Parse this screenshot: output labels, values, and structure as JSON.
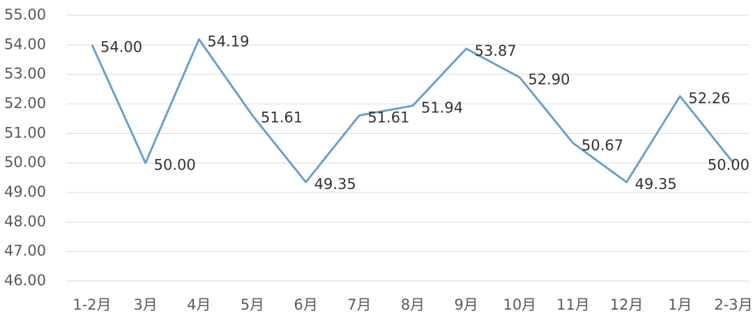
{
  "chart_data": {
    "type": "line",
    "categories": [
      "1-2月",
      "3月",
      "4月",
      "5月",
      "6月",
      "7月",
      "8月",
      "9月",
      "10月",
      "11月",
      "12月",
      "1月",
      "2-3月"
    ],
    "values": [
      54.0,
      50.0,
      54.19,
      51.61,
      49.35,
      51.61,
      51.94,
      53.87,
      52.9,
      50.67,
      49.35,
      52.26,
      50.0
    ],
    "value_labels": [
      "54.00",
      "50.00",
      "54.19",
      "51.61",
      "49.35",
      "51.61",
      "51.94",
      "53.87",
      "52.90",
      "50.67",
      "49.35",
      "52.26",
      "50.00"
    ],
    "color": "#6a9fcf",
    "ylim": [
      46,
      55
    ],
    "yticks": [
      {
        "value": 46,
        "label": "46.00"
      },
      {
        "value": 47,
        "label": "47.00"
      },
      {
        "value": 48,
        "label": "48.00"
      },
      {
        "value": 49,
        "label": "49.00"
      },
      {
        "value": 50,
        "label": "50.00"
      },
      {
        "value": 51,
        "label": "51.00"
      },
      {
        "value": 52,
        "label": "52.00"
      },
      {
        "value": 53,
        "label": "53.00"
      },
      {
        "value": 54,
        "label": "54.00"
      },
      {
        "value": 55,
        "label": "55.00"
      }
    ],
    "grid": true
  }
}
